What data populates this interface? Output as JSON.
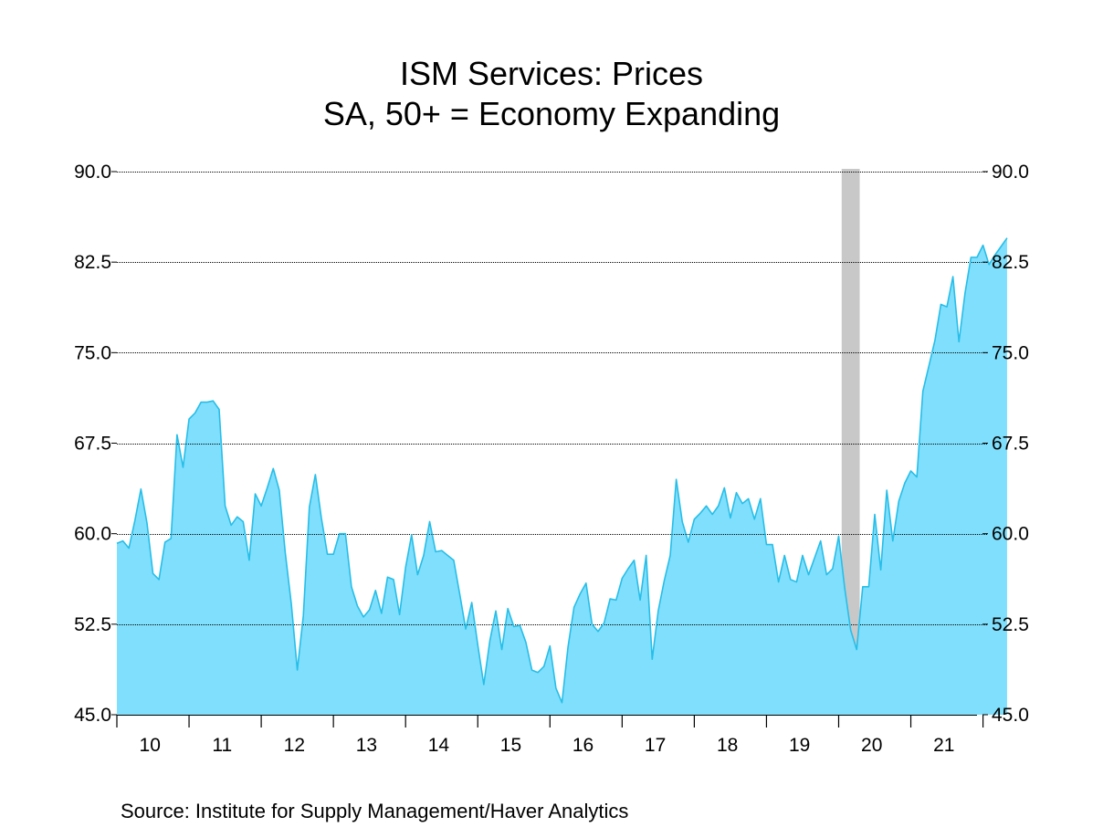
{
  "chart_data": {
    "type": "area",
    "title": "ISM Services: Prices",
    "subtitle": "SA, 50+ = Economy Expanding",
    "source": "Source:  Institute for Supply Management/Haver Analytics",
    "ylim": [
      45.0,
      90.0
    ],
    "y_ticks": [
      "90.0",
      "82.5",
      "75.0",
      "67.5",
      "60.0",
      "52.5",
      "45.0"
    ],
    "y_tick_values": [
      90.0,
      82.5,
      75.0,
      67.5,
      60.0,
      52.5,
      45.0
    ],
    "x_tick_labels": [
      "10",
      "11",
      "12",
      "13",
      "14",
      "15",
      "16",
      "17",
      "18",
      "19",
      "20",
      "21"
    ],
    "x_start": "2010-01",
    "grid": true,
    "colors": {
      "fill": "#80dffc",
      "line": "#26bee8",
      "recession": "#c8c8c8"
    },
    "recession": {
      "start": "2020-02",
      "end": "2020-04"
    },
    "series": [
      {
        "values": [
          59.2,
          59.4,
          58.8,
          61.1,
          63.7,
          60.9,
          56.7,
          56.2,
          59.3,
          59.6,
          68.2,
          65.5,
          69.5,
          70.0,
          70.9,
          70.9,
          71.0,
          70.3,
          62.3,
          60.7,
          61.4,
          61.0,
          57.8,
          63.3,
          62.3,
          63.8,
          65.4,
          63.6,
          58.4,
          54.2,
          48.7,
          53.2,
          62.2,
          64.9,
          61.3,
          58.3,
          58.3,
          60.0,
          60.0,
          55.6,
          54.0,
          53.1,
          53.7,
          55.3,
          53.4,
          56.4,
          56.2,
          53.3,
          57.2,
          59.9,
          56.6,
          58.2,
          61.0,
          58.5,
          58.6,
          58.2,
          57.8,
          55.0,
          52.1,
          54.3,
          50.8,
          47.5,
          51.1,
          53.6,
          50.4,
          53.8,
          52.3,
          52.4,
          51.0,
          48.7,
          48.5,
          49.0,
          50.7,
          47.2,
          46.0,
          50.6,
          53.9,
          55.0,
          55.9,
          52.5,
          51.9,
          52.6,
          54.6,
          54.5,
          56.3,
          57.1,
          57.8,
          54.5,
          58.2,
          49.6,
          53.6,
          56.1,
          58.2,
          64.5,
          61.0,
          59.3,
          61.2,
          61.7,
          62.3,
          61.6,
          62.3,
          63.8,
          61.3,
          63.4,
          62.5,
          62.9,
          61.2,
          62.9,
          59.1,
          59.1,
          56.0,
          58.2,
          56.2,
          56.0,
          58.2,
          56.6,
          58.0,
          59.4,
          56.6,
          57.1,
          59.8,
          55.5,
          52.0,
          50.4,
          55.6,
          55.6,
          61.6,
          57.0,
          63.6,
          59.4,
          62.7,
          64.2,
          65.2,
          64.7,
          71.8,
          73.9,
          76.0,
          79.0,
          78.8,
          81.3,
          75.9,
          79.9,
          82.9,
          82.9,
          83.9,
          82.3,
          83.1,
          83.8,
          84.5
        ]
      }
    ]
  }
}
